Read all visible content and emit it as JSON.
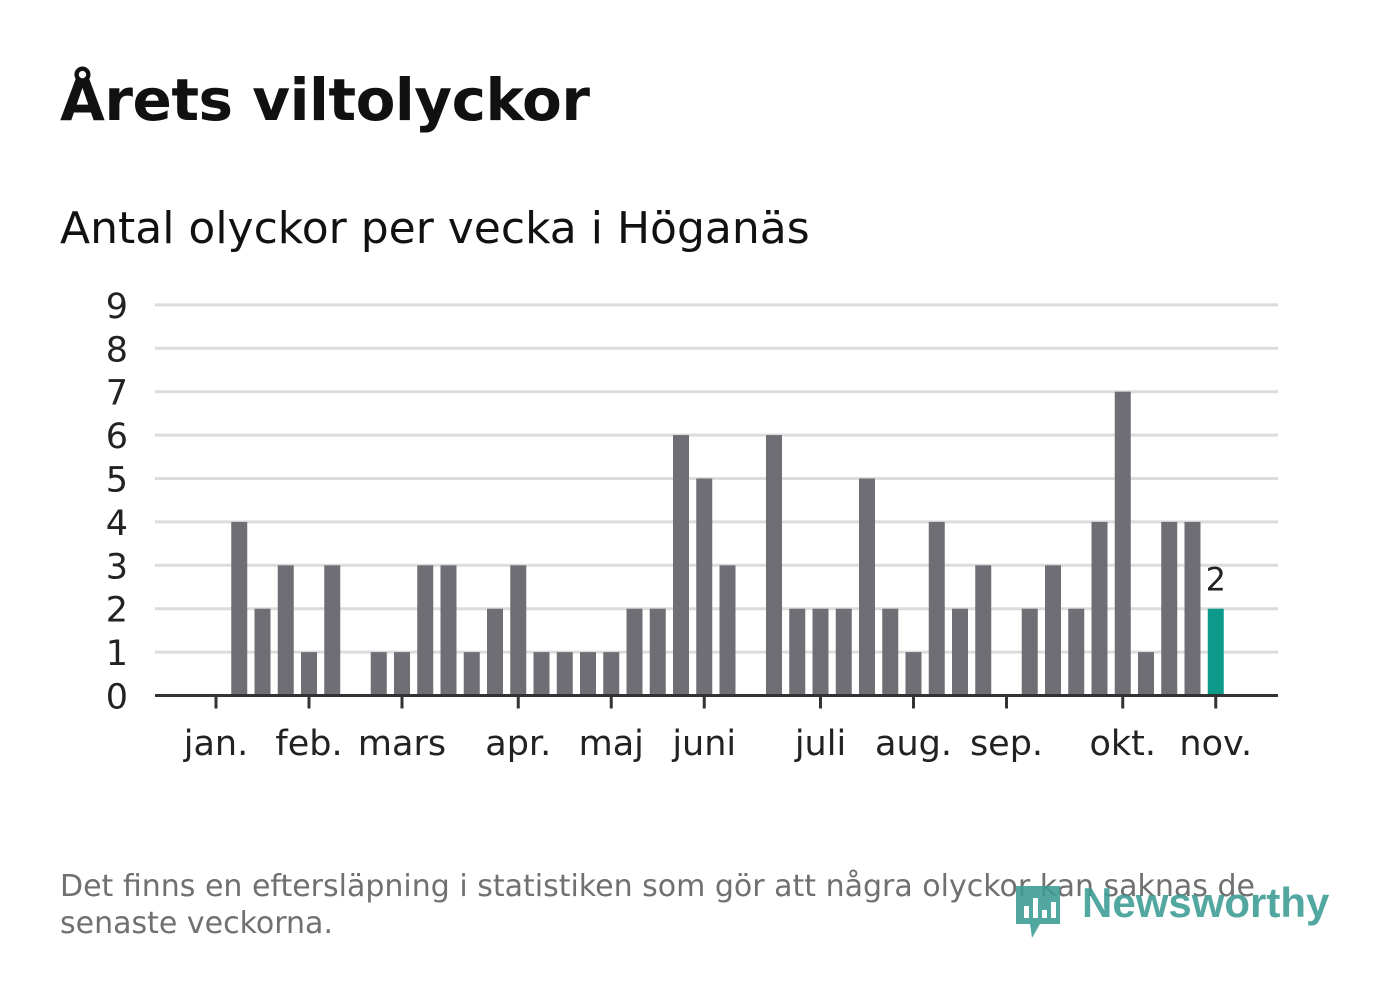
{
  "title": "Årets viltolyckor",
  "subtitle": "Antal olyckor per vecka i Höganäs",
  "footnote": "Det finns en eftersläpning i statistiken som gör att några olyckor kan saknas de senaste veckorna.",
  "brand": "Newsworthy",
  "colors": {
    "bar": "#6f6e74",
    "highlight": "#0e9a8b",
    "grid": "#dcdcdc",
    "axis": "#333333",
    "logo": "#3b9d93"
  },
  "chart_data": {
    "type": "bar",
    "title": "Antal olyckor per vecka i Höganäs",
    "xlabel": "",
    "ylabel": "",
    "ylim": [
      0,
      9
    ],
    "yticks": [
      0,
      1,
      2,
      3,
      4,
      5,
      6,
      7,
      8,
      9
    ],
    "grid": true,
    "month_labels": [
      "jan.",
      "feb.",
      "mars",
      "apr.",
      "maj",
      "juni",
      "juli",
      "aug.",
      "sep.",
      "okt.",
      "nov."
    ],
    "month_tick_weeks": [
      1,
      5,
      9,
      14,
      18,
      22,
      27,
      31,
      35,
      40,
      44
    ],
    "weeks": [
      1,
      2,
      3,
      4,
      5,
      6,
      7,
      8,
      9,
      10,
      11,
      12,
      13,
      14,
      15,
      16,
      17,
      18,
      19,
      20,
      21,
      22,
      23,
      24,
      25,
      26,
      27,
      28,
      29,
      30,
      31,
      32,
      33,
      34,
      35,
      36,
      37,
      38,
      39,
      40,
      41,
      42,
      43,
      44
    ],
    "values": [
      0,
      4,
      2,
      3,
      1,
      3,
      0,
      1,
      1,
      3,
      3,
      1,
      2,
      3,
      1,
      1,
      1,
      1,
      2,
      2,
      6,
      5,
      3,
      0,
      6,
      2,
      2,
      2,
      5,
      2,
      1,
      4,
      2,
      3,
      0,
      2,
      3,
      2,
      4,
      7,
      1,
      4,
      4,
      2
    ],
    "highlight_index": 43,
    "highlight_label": "2"
  }
}
